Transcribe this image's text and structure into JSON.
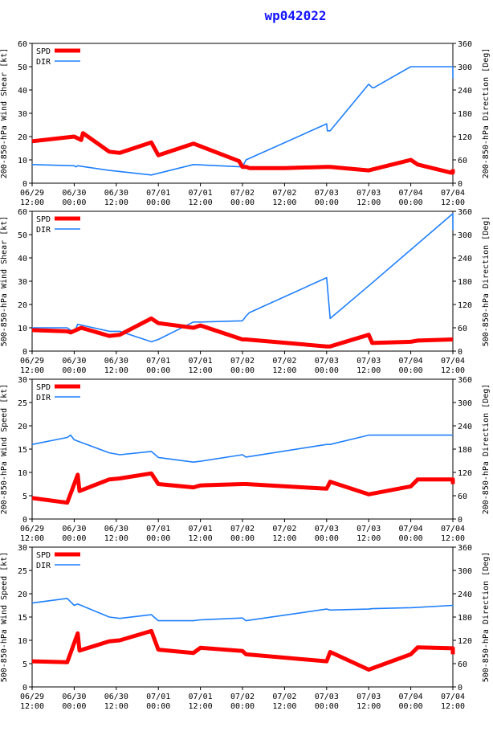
{
  "title": "wp042022",
  "colors": {
    "spd": "#ff0000",
    "dir": "#1e7fff",
    "axis": "#000000",
    "title": "#1414ff"
  },
  "x_ticks": [
    {
      "date": "06/29",
      "time": "12:00"
    },
    {
      "date": "06/30",
      "time": "00:00"
    },
    {
      "date": "06/30",
      "time": "12:00"
    },
    {
      "date": "07/01",
      "time": "00:00"
    },
    {
      "date": "07/01",
      "time": "12:00"
    },
    {
      "date": "07/02",
      "time": "00:00"
    },
    {
      "date": "07/02",
      "time": "12:00"
    },
    {
      "date": "07/03",
      "time": "00:00"
    },
    {
      "date": "07/03",
      "time": "12:00"
    },
    {
      "date": "07/04",
      "time": "00:00"
    },
    {
      "date": "07/04",
      "time": "12:00"
    }
  ],
  "chart_data": [
    {
      "type": "line",
      "ylabel_left": "200-850-hPa Wind Shear [kt]",
      "ylabel_right": "200-850-hPa Direction [Deg]",
      "ylim_left": [
        0,
        60
      ],
      "yticks_left": [
        0,
        10,
        20,
        30,
        40,
        50,
        60
      ],
      "ylim_right": [
        0,
        360
      ],
      "yticks_right": [
        0,
        60,
        120,
        180,
        240,
        300,
        360
      ],
      "xlim_hours": [
        0,
        120
      ],
      "legend": [
        "SPD",
        "DIR"
      ],
      "series": [
        {
          "name": "SPD",
          "axis": "left",
          "x": [
            0,
            12,
            14,
            14.5,
            22,
            25,
            34,
            36,
            46,
            59,
            60,
            61,
            62,
            72,
            84,
            85,
            96,
            108,
            110,
            119.5,
            120,
            120,
            120
          ],
          "y": [
            18,
            20,
            18.5,
            21.5,
            13.5,
            13,
            17.5,
            12,
            17,
            9.5,
            7,
            7,
            6.5,
            6.5,
            7,
            7,
            5.5,
            10,
            8,
            4.5,
            4.5,
            6,
            6
          ]
        },
        {
          "name": "DIR",
          "axis": "left",
          "x": [
            0,
            12,
            12.5,
            13,
            22,
            34,
            46,
            60,
            61,
            84,
            84.2,
            85,
            96,
            97,
            97.5,
            108,
            120,
            120,
            120
          ],
          "y": [
            8,
            7.5,
            7,
            7.5,
            5.5,
            3.5,
            8,
            7,
            10,
            25.5,
            22.5,
            22.5,
            42.5,
            41,
            41,
            50,
            50,
            45,
            45
          ]
        }
      ]
    },
    {
      "type": "line",
      "ylabel_left": "500-850-hPa Wind Shear [kt]",
      "ylabel_right": "500-850-hPa Direction [Deg]",
      "ylim_left": [
        0,
        60
      ],
      "yticks_left": [
        0,
        10,
        20,
        30,
        40,
        50,
        60
      ],
      "ylim_right": [
        0,
        360
      ],
      "yticks_right": [
        0,
        60,
        120,
        180,
        240,
        300,
        360
      ],
      "xlim_hours": [
        0,
        120
      ],
      "legend": [
        "SPD",
        "DIR"
      ],
      "series": [
        {
          "name": "SPD",
          "axis": "left",
          "x": [
            0,
            10,
            11,
            14,
            22,
            25,
            34,
            36,
            46,
            48,
            60,
            61,
            84,
            85,
            96,
            97,
            108,
            110,
            120
          ],
          "y": [
            9,
            8.5,
            8,
            10,
            6.5,
            7,
            14,
            12,
            10,
            11,
            5,
            5,
            2,
            2,
            7,
            3.5,
            4,
            4.5,
            5
          ]
        },
        {
          "name": "DIR",
          "axis": "left",
          "x": [
            0,
            10,
            12,
            13,
            22,
            25,
            34,
            36,
            46,
            48,
            60,
            61,
            62,
            84,
            85,
            96,
            120,
            120
          ],
          "y": [
            10,
            10,
            8,
            11.5,
            8.5,
            8.5,
            4,
            5,
            12.5,
            12.5,
            13,
            15,
            16.5,
            31.5,
            14,
            28,
            59,
            52
          ]
        }
      ]
    },
    {
      "type": "line",
      "ylabel_left": "200-850-hPa Wind Speed [kt]",
      "ylabel_right": "200-850-hPa Direction [Deg]",
      "ylim_left": [
        0,
        30
      ],
      "yticks_left": [
        0,
        5,
        10,
        15,
        20,
        25,
        30
      ],
      "ylim_right": [
        0,
        360
      ],
      "yticks_right": [
        0,
        60,
        120,
        180,
        240,
        300,
        360
      ],
      "xlim_hours": [
        0,
        120
      ],
      "legend": [
        "SPD",
        "DIR"
      ],
      "series": [
        {
          "name": "SPD",
          "axis": "left",
          "x": [
            0,
            10,
            13,
            13.5,
            22,
            25,
            34,
            36,
            46,
            48,
            60,
            61,
            84,
            85,
            96,
            108,
            110,
            120,
            120
          ],
          "y": [
            4.5,
            3.5,
            9.5,
            6,
            8.5,
            8.7,
            9.8,
            7.5,
            6.8,
            7.2,
            7.5,
            7.5,
            6.5,
            8,
            5.3,
            7,
            8.5,
            8.5,
            7.5
          ]
        },
        {
          "name": "DIR",
          "axis": "left",
          "x": [
            0,
            10,
            11,
            12,
            22,
            25,
            34,
            36,
            46,
            48,
            60,
            61,
            84,
            85,
            96,
            97,
            108,
            120
          ],
          "y": [
            16,
            17.5,
            18,
            17,
            14.2,
            13.8,
            14.5,
            13.2,
            12.2,
            12.4,
            13.8,
            13.3,
            16,
            16,
            18,
            18,
            18,
            18
          ]
        }
      ]
    },
    {
      "type": "line",
      "ylabel_left": "500-850-hPa Wind Speed [kt]",
      "ylabel_right": "500-850-hPa Direction [Deg]",
      "ylim_left": [
        0,
        30
      ],
      "yticks_left": [
        0,
        5,
        10,
        15,
        20,
        25,
        30
      ],
      "ylim_right": [
        0,
        360
      ],
      "yticks_right": [
        0,
        60,
        120,
        180,
        240,
        300,
        360
      ],
      "xlim_hours": [
        0,
        120
      ],
      "legend": [
        "SPD",
        "DIR"
      ],
      "series": [
        {
          "name": "SPD",
          "axis": "left",
          "x": [
            0,
            10,
            13,
            13.5,
            22,
            25,
            34,
            36,
            46,
            48,
            60,
            61,
            84,
            85,
            96,
            108,
            110,
            120,
            120
          ],
          "y": [
            5.5,
            5.3,
            11.5,
            7.8,
            9.8,
            10,
            12,
            8,
            7.3,
            8.4,
            7.7,
            7,
            5.5,
            7.5,
            3.7,
            7,
            8.5,
            8.3,
            7
          ]
        },
        {
          "name": "DIR",
          "axis": "left",
          "x": [
            0,
            10,
            12,
            13,
            22,
            25,
            34,
            36,
            46,
            48,
            60,
            61,
            84,
            85,
            96,
            97,
            108,
            120,
            120
          ],
          "y": [
            18,
            19,
            17.5,
            17.8,
            15,
            14.7,
            15.5,
            14.2,
            14.2,
            14.4,
            14.8,
            14.2,
            16.7,
            16.5,
            16.7,
            16.8,
            17,
            17.5,
            17.3
          ]
        }
      ]
    }
  ]
}
